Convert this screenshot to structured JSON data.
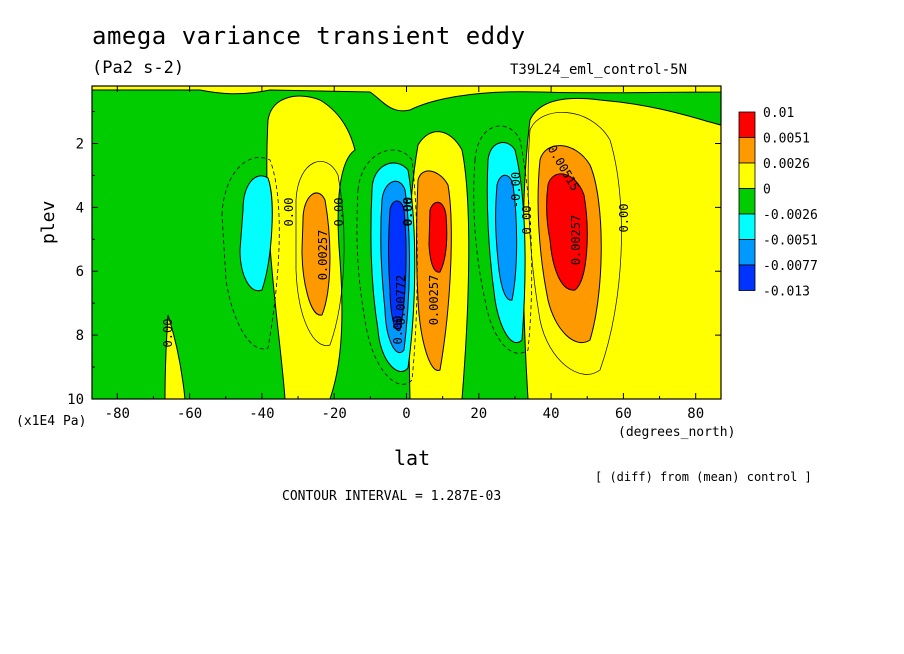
{
  "chart_data": {
    "type": "contour",
    "title": "amega variance transient eddy",
    "units": "(Pa2 s-2)",
    "run_label": "T39L24_eml_control-5N",
    "xlabel": "lat",
    "xunits": "(degrees_north)",
    "ylabel": "plev",
    "yunits": "(x1E4 Pa)",
    "xlim": [
      -87,
      87
    ],
    "ylim": [
      0.2,
      10
    ],
    "y_inverted": true,
    "xticks": [
      "-80",
      "-60",
      "-40",
      "-20",
      "0",
      "20",
      "40",
      "60",
      "80"
    ],
    "yticks": [
      "2",
      "4",
      "6",
      "8",
      "10"
    ],
    "note": "[ (diff) from (mean) control ]",
    "contour_interval": "CONTOUR INTERVAL = 1.287E-03",
    "colorbar": {
      "labels": [
        "0.01",
        "0.0051",
        "0.0026",
        "0",
        "-0.0026",
        "-0.0051",
        "-0.0077",
        "-0.013"
      ],
      "colors": [
        "#ff0000",
        "#ff9900",
        "#ffff00",
        "#00cc00",
        "#00ffff",
        "#0099ff",
        "#0033ff"
      ]
    },
    "contour_labels": [
      "0.00",
      "0.00",
      "0.00",
      "0.00257",
      "0.00772",
      "0.00257",
      "0.00",
      "-0.00",
      "0.00",
      "0.00257",
      "0.00515",
      "0.00",
      "-0.00",
      "0.00"
    ],
    "features": [
      {
        "name": "neg_a",
        "center_lat": -40,
        "center_plev": 4.6,
        "peak": -0.0045
      },
      {
        "name": "pos_a",
        "center_lat": -25,
        "center_plev": 5.2,
        "peak": 0.004
      },
      {
        "name": "neg_b",
        "center_lat": -1,
        "center_plev": 5.2,
        "peak": -0.011
      },
      {
        "name": "pos_b",
        "center_lat": 9,
        "center_plev": 5.8,
        "peak": 0.009
      },
      {
        "name": "neg_c",
        "center_lat": 28,
        "center_plev": 4.8,
        "peak": -0.006
      },
      {
        "name": "pos_c",
        "center_lat": 45,
        "center_plev": 4.8,
        "peak": 0.01
      }
    ]
  }
}
